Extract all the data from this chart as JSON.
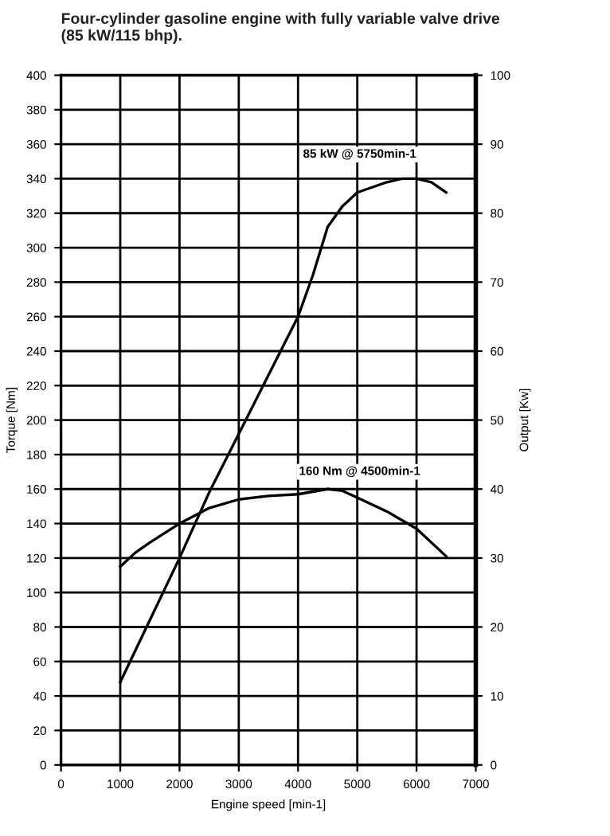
{
  "chart_data": {
    "type": "line",
    "title": "Four-cylinder gasoline engine with fully variable valve drive\n(85 kW/115 bhp).",
    "xlabel": "Engine speed [min-1]",
    "ylabel": "Torque [Nm]",
    "y2label": "Output [Kw]",
    "series": [
      {
        "color": "#000000",
        "x": [
          1000,
          1250,
          1500,
          2000,
          2500,
          3000,
          3500,
          4000,
          4500,
          4750,
          5000,
          5500,
          6000,
          6500
        ],
        "values": [
          115,
          123,
          129,
          140,
          149,
          154,
          156,
          157,
          160,
          159,
          155,
          147,
          137,
          121
        ]
      },
      {
        "color": "#000000",
        "axis": "y2",
        "x": [
          1000,
          1500,
          2000,
          2500,
          3000,
          3500,
          4000,
          4250,
          4500,
          4750,
          5000,
          5500,
          5750,
          6000,
          6250,
          6500
        ],
        "values": [
          12,
          21,
          30,
          39.5,
          48,
          56.5,
          65,
          71,
          78,
          81,
          83,
          84.5,
          85,
          85,
          84.5,
          83
        ]
      }
    ],
    "xlim": [
      0,
      7000
    ],
    "xticks": [
      0,
      1000,
      2000,
      3000,
      4000,
      5000,
      6000,
      7000
    ],
    "ylim": [
      0,
      400
    ],
    "yticks": [
      0,
      20,
      40,
      60,
      80,
      100,
      120,
      140,
      160,
      180,
      200,
      220,
      240,
      260,
      280,
      300,
      320,
      340,
      360,
      380,
      400
    ],
    "y2lim": [
      0,
      100
    ],
    "y2ticks": [
      0,
      10,
      20,
      30,
      40,
      50,
      60,
      70,
      80,
      90,
      100
    ],
    "annotations": [
      "85 kW @ 5750min-1",
      "160 Nm @ 4500min-1"
    ],
    "grid": true,
    "legend": false,
    "marker": "none",
    "line_style": "solid"
  }
}
